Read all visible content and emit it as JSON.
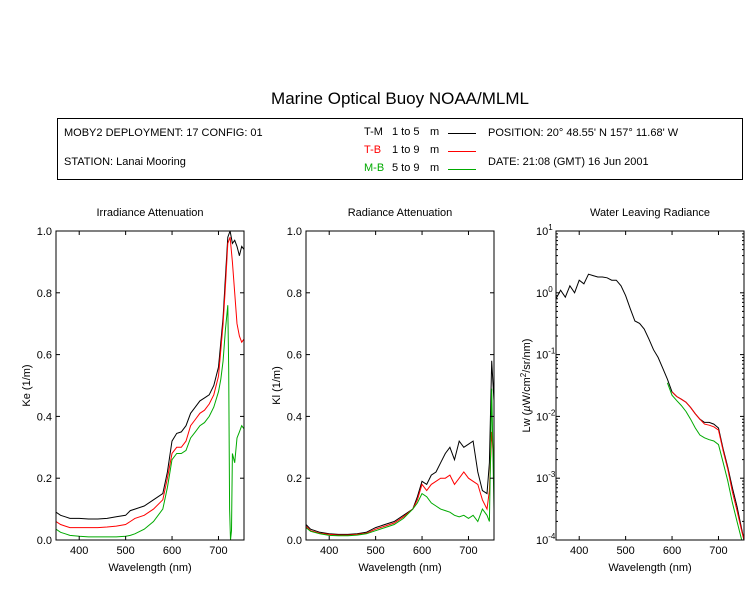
{
  "title": "Marine Optical Buoy NOAA/MLML",
  "info": {
    "deployment": "MOBY2 DEPLOYMENT: 17 CONFIG: 01",
    "station": "STATION: Lanai Mooring",
    "position": "POSITION: 20° 48.55' N   157° 11.68' W",
    "date": "DATE: 21:08 (GMT) 16 Jun 2001"
  },
  "legend": [
    {
      "code": "T-M",
      "range": "1 to 5",
      "unit": "m",
      "color": "#000000"
    },
    {
      "code": "T-B",
      "range": "1 to 9",
      "unit": "m",
      "color": "#ff0000"
    },
    {
      "code": "M-B",
      "range": "5 to 9",
      "unit": "m",
      "color": "#00aa00"
    }
  ],
  "colors": {
    "tm": "#000000",
    "tb": "#ff0000",
    "mb": "#00aa00"
  },
  "chart_data": [
    {
      "type": "line",
      "title": "Irradiance Attenuation",
      "xlabel": "Wavelength (nm)",
      "ylabel": "Ke  (1/m)",
      "xlim": [
        350,
        755
      ],
      "ylim": [
        0,
        1.0
      ],
      "xticks": [
        400,
        500,
        600,
        700
      ],
      "yticks": [
        0.0,
        0.2,
        0.4,
        0.6,
        0.8,
        1.0
      ],
      "ytick_labels": [
        "0.0",
        "0.2",
        "0.4",
        "0.6",
        "0.8",
        "1.0"
      ],
      "series": [
        {
          "name": "T-M",
          "x": [
            350,
            360,
            370,
            380,
            400,
            420,
            440,
            460,
            480,
            500,
            510,
            520,
            540,
            560,
            580,
            590,
            600,
            610,
            620,
            630,
            640,
            650,
            660,
            670,
            680,
            690,
            700,
            710,
            715,
            720,
            725,
            730,
            735,
            740,
            745,
            750,
            755
          ],
          "y": [
            0.09,
            0.08,
            0.075,
            0.07,
            0.07,
            0.068,
            0.068,
            0.07,
            0.075,
            0.08,
            0.095,
            0.1,
            0.11,
            0.13,
            0.15,
            0.22,
            0.32,
            0.345,
            0.35,
            0.37,
            0.41,
            0.43,
            0.45,
            0.46,
            0.47,
            0.5,
            0.56,
            0.72,
            0.85,
            0.98,
            1.0,
            0.96,
            0.97,
            0.95,
            0.92,
            0.95,
            0.94
          ]
        },
        {
          "name": "T-B",
          "x": [
            350,
            360,
            370,
            380,
            400,
            420,
            440,
            460,
            480,
            500,
            510,
            520,
            540,
            560,
            580,
            590,
            600,
            610,
            620,
            630,
            640,
            650,
            660,
            670,
            680,
            690,
            700,
            710,
            715,
            720,
            725,
            730,
            735,
            740,
            745,
            750,
            755
          ],
          "y": [
            0.06,
            0.05,
            0.045,
            0.04,
            0.04,
            0.04,
            0.04,
            0.042,
            0.045,
            0.05,
            0.06,
            0.07,
            0.08,
            0.1,
            0.13,
            0.2,
            0.28,
            0.3,
            0.3,
            0.32,
            0.37,
            0.39,
            0.41,
            0.42,
            0.44,
            0.47,
            0.53,
            0.7,
            0.82,
            0.96,
            0.98,
            0.9,
            0.8,
            0.7,
            0.66,
            0.64,
            0.65
          ]
        },
        {
          "name": "M-B",
          "x": [
            350,
            360,
            370,
            380,
            400,
            420,
            440,
            460,
            480,
            500,
            510,
            520,
            540,
            560,
            580,
            590,
            600,
            610,
            620,
            630,
            640,
            650,
            660,
            670,
            680,
            690,
            700,
            705,
            710,
            715,
            720,
            722,
            724,
            726,
            728,
            730,
            735,
            740,
            745,
            750,
            755
          ],
          "y": [
            0.035,
            0.025,
            0.02,
            0.015,
            0.012,
            0.01,
            0.01,
            0.01,
            0.01,
            0.012,
            0.015,
            0.02,
            0.035,
            0.06,
            0.1,
            0.17,
            0.26,
            0.28,
            0.28,
            0.29,
            0.33,
            0.35,
            0.37,
            0.38,
            0.4,
            0.43,
            0.48,
            0.52,
            0.58,
            0.68,
            0.76,
            0.55,
            0.1,
            0.0,
            0.03,
            0.28,
            0.25,
            0.33,
            0.35,
            0.37,
            0.36
          ]
        }
      ]
    },
    {
      "type": "line",
      "title": "Radiance Attenuation",
      "xlabel": "Wavelength (nm)",
      "ylabel": "Kl  (1/m)",
      "xlim": [
        350,
        755
      ],
      "ylim": [
        0,
        1.0
      ],
      "xticks": [
        400,
        500,
        600,
        700
      ],
      "yticks": [
        0.0,
        0.2,
        0.4,
        0.6,
        0.8,
        1.0
      ],
      "ytick_labels": [
        "0.0",
        "0.2",
        "0.4",
        "0.6",
        "0.8",
        "1.0"
      ],
      "series": [
        {
          "name": "T-M",
          "x": [
            350,
            360,
            380,
            400,
            420,
            440,
            460,
            480,
            500,
            520,
            540,
            560,
            580,
            590,
            600,
            610,
            620,
            630,
            640,
            650,
            660,
            670,
            680,
            690,
            700,
            710,
            720,
            730,
            740,
            745,
            750,
            755
          ],
          "y": [
            0.05,
            0.035,
            0.025,
            0.02,
            0.018,
            0.018,
            0.02,
            0.025,
            0.04,
            0.05,
            0.06,
            0.08,
            0.1,
            0.14,
            0.19,
            0.18,
            0.21,
            0.22,
            0.25,
            0.28,
            0.3,
            0.26,
            0.32,
            0.3,
            0.31,
            0.32,
            0.22,
            0.16,
            0.15,
            0.25,
            0.58,
            0.45
          ]
        },
        {
          "name": "T-B",
          "x": [
            350,
            360,
            380,
            400,
            420,
            440,
            460,
            480,
            500,
            520,
            540,
            560,
            580,
            590,
            600,
            610,
            620,
            630,
            640,
            650,
            660,
            670,
            680,
            690,
            700,
            710,
            720,
            730,
            740,
            745,
            750,
            755
          ],
          "y": [
            0.045,
            0.03,
            0.022,
            0.018,
            0.016,
            0.016,
            0.018,
            0.022,
            0.035,
            0.045,
            0.055,
            0.075,
            0.1,
            0.13,
            0.18,
            0.16,
            0.18,
            0.19,
            0.2,
            0.2,
            0.21,
            0.18,
            0.2,
            0.22,
            0.2,
            0.19,
            0.18,
            0.13,
            0.1,
            0.16,
            0.35,
            0.25
          ]
        },
        {
          "name": "M-B",
          "x": [
            350,
            360,
            380,
            400,
            420,
            440,
            460,
            480,
            500,
            520,
            540,
            560,
            580,
            590,
            600,
            610,
            620,
            630,
            640,
            650,
            660,
            670,
            680,
            690,
            700,
            710,
            720,
            730,
            740,
            745,
            750,
            755
          ],
          "y": [
            0.04,
            0.028,
            0.02,
            0.015,
            0.014,
            0.014,
            0.016,
            0.02,
            0.03,
            0.04,
            0.05,
            0.07,
            0.1,
            0.12,
            0.15,
            0.14,
            0.12,
            0.11,
            0.1,
            0.095,
            0.09,
            0.08,
            0.075,
            0.08,
            0.07,
            0.08,
            0.06,
            0.1,
            0.08,
            0.06,
            0.49,
            0.1
          ]
        }
      ]
    },
    {
      "type": "line",
      "title": "Water Leaving Radiance",
      "xlabel": "Wavelength (nm)",
      "ylabel": "Lw  (µW/cm²/sr/nm)",
      "ylabel_parts": {
        "pre": "Lw  (",
        "mu": "µ",
        "w": "W/cm",
        "sup": "2",
        "post": "/sr/nm)"
      },
      "yscale": "log",
      "xlim": [
        350,
        755
      ],
      "ylim": [
        0.0001,
        10
      ],
      "xticks": [
        400,
        500,
        600,
        700
      ],
      "yticks": [
        0.0001,
        0.001,
        0.01,
        0.1,
        1,
        10
      ],
      "ytick_labels": [
        {
          "base": "10",
          "exp": "-4"
        },
        {
          "base": "10",
          "exp": "-3"
        },
        {
          "base": "10",
          "exp": "-2"
        },
        {
          "base": "10",
          "exp": "-1"
        },
        {
          "base": "10",
          "exp": "0"
        },
        {
          "base": "10",
          "exp": "1"
        }
      ],
      "series": [
        {
          "name": "T-M",
          "x": [
            350,
            360,
            370,
            380,
            390,
            400,
            410,
            420,
            430,
            440,
            450,
            460,
            470,
            480,
            490,
            500,
            510,
            520,
            530,
            540,
            550,
            560,
            570,
            580,
            590,
            600,
            610,
            620,
            630,
            640,
            650,
            660,
            670,
            680,
            690,
            700,
            710,
            720,
            730,
            740,
            750,
            755
          ],
          "y": [
            0.8,
            1.1,
            0.85,
            1.3,
            1.0,
            1.6,
            1.4,
            2.0,
            1.9,
            1.8,
            1.8,
            1.75,
            1.6,
            1.6,
            1.3,
            0.9,
            0.55,
            0.35,
            0.32,
            0.26,
            0.18,
            0.12,
            0.09,
            0.06,
            0.04,
            0.025,
            0.021,
            0.019,
            0.017,
            0.014,
            0.011,
            0.009,
            0.008,
            0.008,
            0.0075,
            0.0065,
            0.003,
            0.0015,
            0.0007,
            0.00035,
            0.00015,
            0.0001
          ]
        },
        {
          "name": "T-B",
          "x": [
            600,
            610,
            620,
            630,
            640,
            650,
            660,
            670,
            680,
            690,
            700,
            710,
            720,
            730,
            740,
            750,
            755
          ],
          "y": [
            0.025,
            0.021,
            0.019,
            0.017,
            0.014,
            0.011,
            0.009,
            0.0075,
            0.0072,
            0.0068,
            0.006,
            0.0028,
            0.0014,
            0.0006,
            0.0003,
            0.00014,
            0.0001
          ]
        },
        {
          "name": "M-B",
          "x": [
            590,
            600,
            610,
            620,
            630,
            640,
            650,
            660,
            670,
            680,
            690,
            700,
            710,
            720,
            730,
            740,
            750,
            755
          ],
          "y": [
            0.035,
            0.022,
            0.018,
            0.015,
            0.012,
            0.009,
            0.0065,
            0.005,
            0.0045,
            0.0042,
            0.004,
            0.0035,
            0.0018,
            0.0009,
            0.0004,
            0.0002,
            0.0001,
            0.0001
          ]
        }
      ]
    }
  ]
}
